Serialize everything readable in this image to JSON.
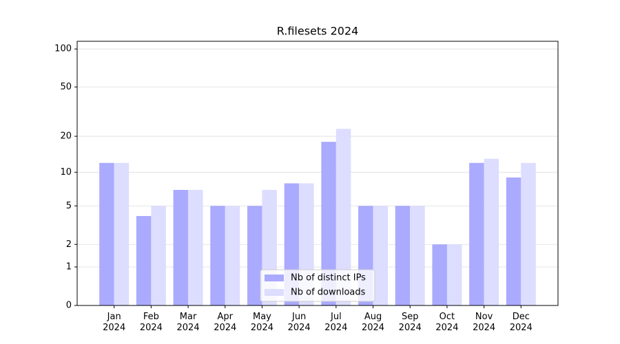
{
  "chart_data": {
    "type": "bar",
    "title": "R.filesets 2024",
    "categories": [
      "Jan\n2024",
      "Feb\n2024",
      "Mar\n2024",
      "Apr\n2024",
      "May\n2024",
      "Jun\n2024",
      "Jul\n2024",
      "Aug\n2024",
      "Sep\n2024",
      "Oct\n2024",
      "Nov\n2024",
      "Dec\n2024"
    ],
    "series": [
      {
        "name": "Nb of distinct IPs",
        "color": "#aaaaff",
        "values": [
          12,
          4,
          7,
          5,
          5,
          8,
          18,
          5,
          5,
          2,
          12,
          9
        ]
      },
      {
        "name": "Nb of downloads",
        "color": "#ddddff",
        "values": [
          12,
          5,
          7,
          5,
          7,
          8,
          23,
          5,
          5,
          2,
          13,
          12
        ]
      }
    ],
    "yscale": "log1p",
    "ylim": [
      0,
      115
    ],
    "yticks": [
      0,
      1,
      2,
      5,
      10,
      20,
      50,
      100
    ],
    "grid": true
  }
}
